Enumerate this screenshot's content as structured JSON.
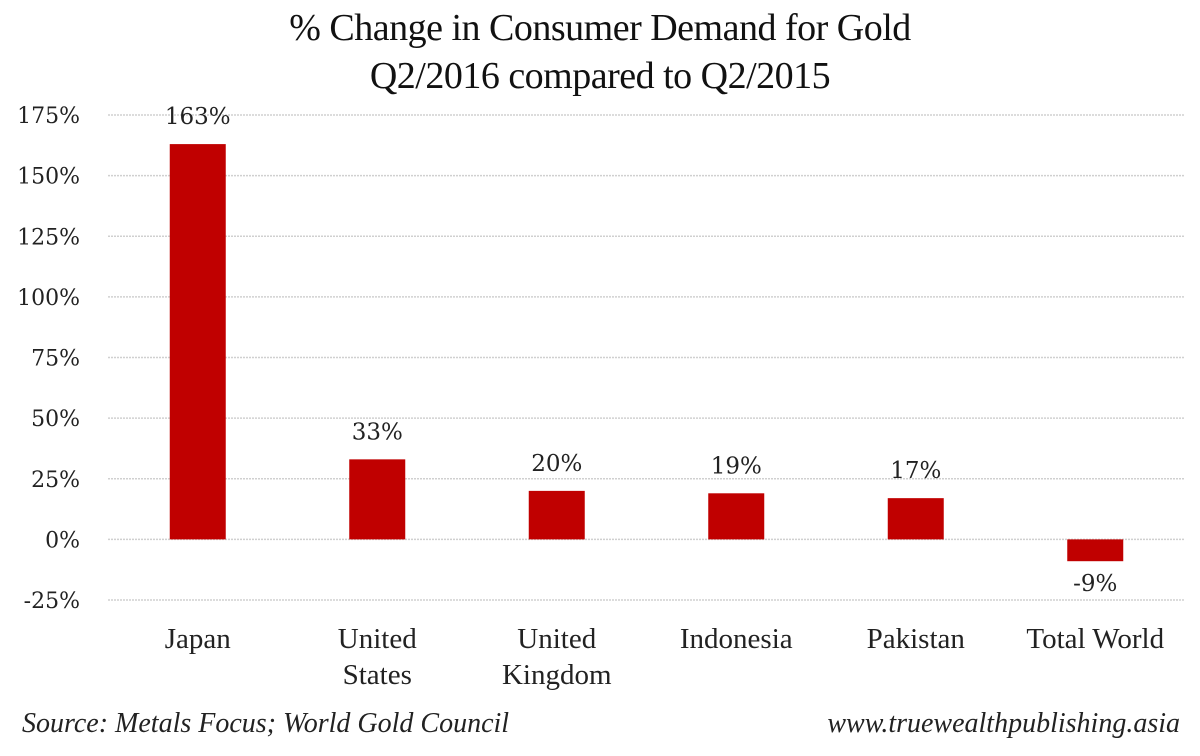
{
  "chart_data": {
    "type": "bar",
    "title": "% Change in Consumer Demand for Gold",
    "subtitle": "Q2/2016 compared to Q2/2015",
    "categories": [
      [
        "Japan"
      ],
      [
        "United",
        "States"
      ],
      [
        "United",
        "Kingdom"
      ],
      [
        "Indonesia"
      ],
      [
        "Pakistan"
      ],
      [
        "Total World"
      ]
    ],
    "category_names": [
      "Japan",
      "United States",
      "United Kingdom",
      "Indonesia",
      "Pakistan",
      "Total World"
    ],
    "values": [
      163,
      33,
      20,
      19,
      17,
      -9
    ],
    "data_labels": [
      "163%",
      "33%",
      "20%",
      "19%",
      "17%",
      "-9%"
    ],
    "xlabel": "",
    "ylabel": "",
    "ylim": [
      -25,
      175
    ],
    "yticks": [
      -25,
      0,
      25,
      50,
      75,
      100,
      125,
      150,
      175
    ],
    "ytick_labels": [
      "-25%",
      "0%",
      "25%",
      "50%",
      "75%",
      "100%",
      "125%",
      "150%",
      "175%"
    ],
    "grid": true,
    "legend": "none",
    "bar_color": "#c00000",
    "grid_color": "#d0d0d0"
  },
  "footer": {
    "source": "Source: Metals Focus; World Gold Council",
    "website": "www.truewealthpublishing.asia"
  }
}
